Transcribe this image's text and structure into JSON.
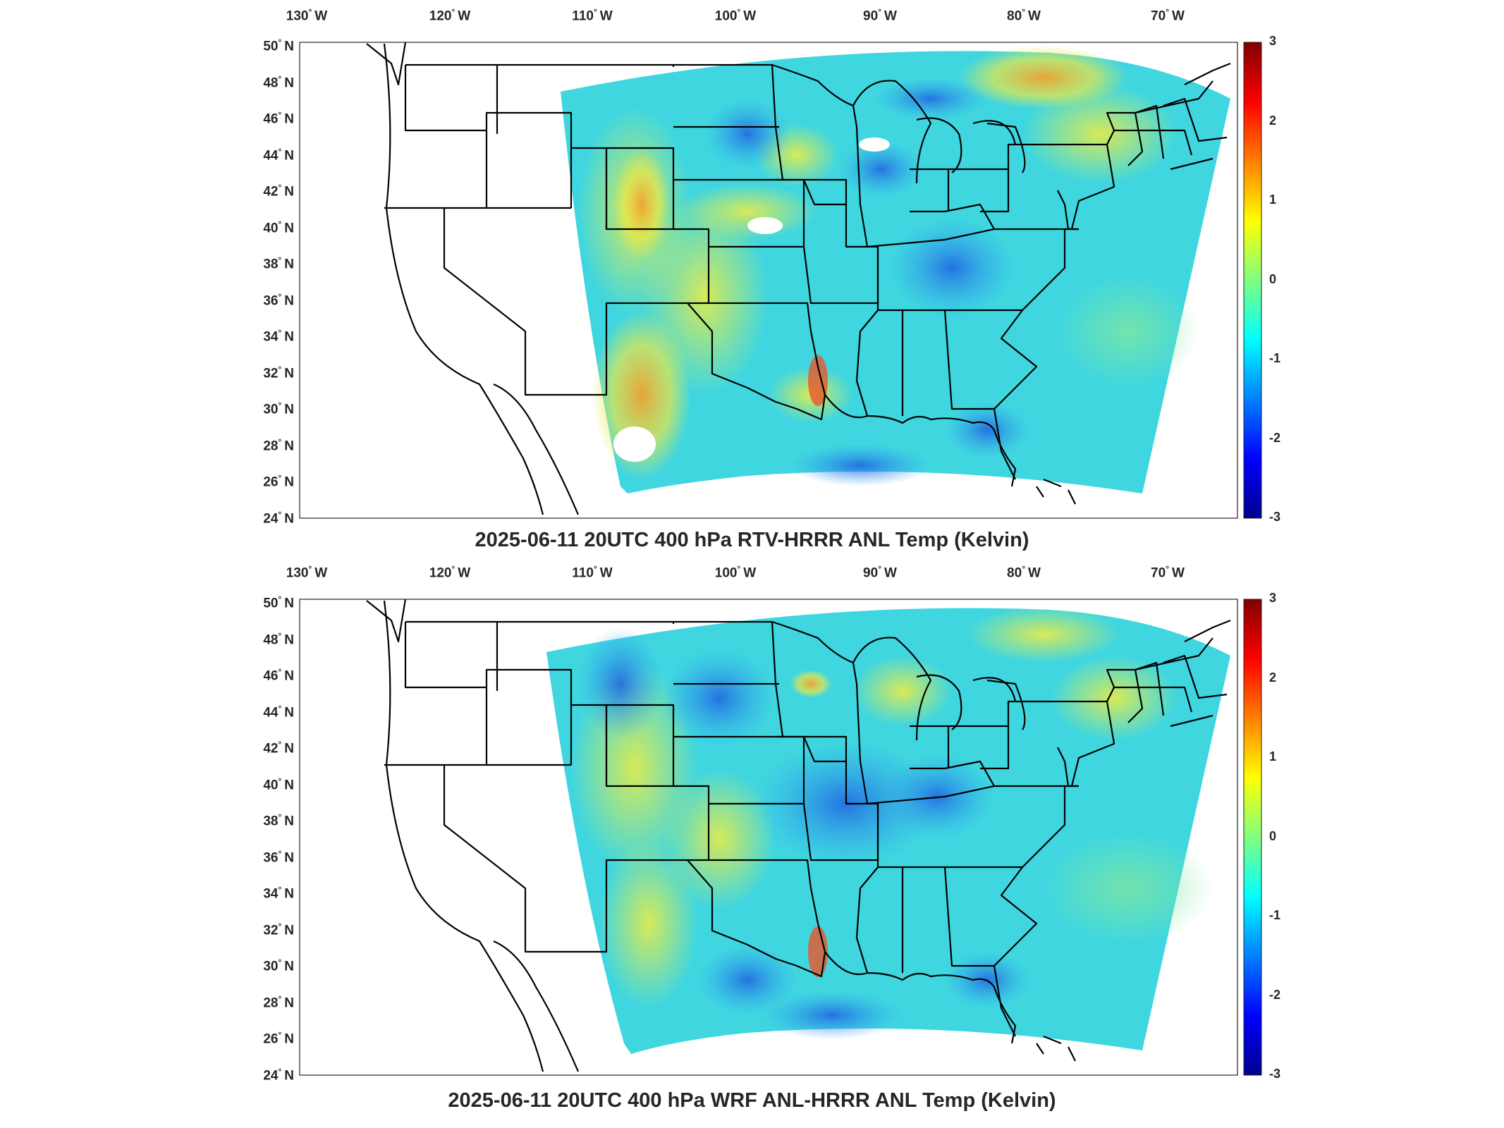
{
  "panels": [
    {
      "id": "rtv",
      "title": "2025-06-11 20UTC 400 hPa RTV-HRRR ANL Temp (Kelvin)"
    },
    {
      "id": "wrf",
      "title": "2025-06-11 20UTC 400 hPa WRF ANL-HRRR ANL Temp (Kelvin)"
    }
  ],
  "lon_ticks": [
    {
      "value": "130",
      "hem": "W"
    },
    {
      "value": "120",
      "hem": "W"
    },
    {
      "value": "110",
      "hem": "W"
    },
    {
      "value": "100",
      "hem": "W"
    },
    {
      "value": "90",
      "hem": "W"
    },
    {
      "value": "80",
      "hem": "W"
    },
    {
      "value": "70",
      "hem": "W"
    }
  ],
  "lat_ticks": [
    {
      "value": "50",
      "hem": "N"
    },
    {
      "value": "48",
      "hem": "N"
    },
    {
      "value": "46",
      "hem": "N"
    },
    {
      "value": "44",
      "hem": "N"
    },
    {
      "value": "42",
      "hem": "N"
    },
    {
      "value": "40",
      "hem": "N"
    },
    {
      "value": "38",
      "hem": "N"
    },
    {
      "value": "36",
      "hem": "N"
    },
    {
      "value": "34",
      "hem": "N"
    },
    {
      "value": "32",
      "hem": "N"
    },
    {
      "value": "30",
      "hem": "N"
    },
    {
      "value": "28",
      "hem": "N"
    },
    {
      "value": "26",
      "hem": "N"
    },
    {
      "value": "24",
      "hem": "N"
    }
  ],
  "colorbar": {
    "min": -3,
    "max": 3,
    "ticks": [
      "3",
      "2",
      "1",
      "0",
      "-1",
      "-2",
      "-3"
    ],
    "colormap": [
      "#00008f",
      "#0000ff",
      "#0080ff",
      "#00ffff",
      "#80ff80",
      "#ffff00",
      "#ff8000",
      "#ff0000",
      "#800000"
    ]
  },
  "colors": {
    "field_base": "#3fd6e0",
    "field_warm": "#e8e84a",
    "field_hot": "#f0a030",
    "field_cold": "#2f7be8",
    "borders": "#000000",
    "frame": "#262626"
  }
}
